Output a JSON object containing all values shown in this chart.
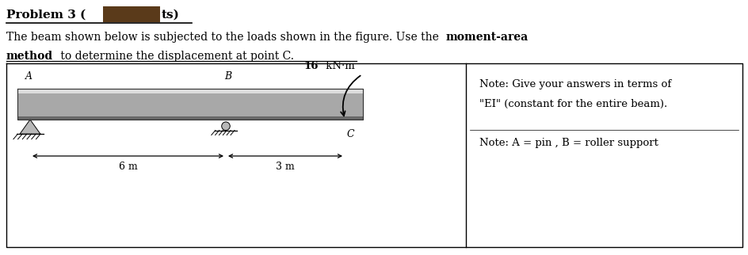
{
  "note1": "Note: Give your answers in terms of",
  "note2": "\"EI\" (constant for the entire beam).",
  "note3": "Note: A = pin , B = roller support",
  "moment_label_bold": "16",
  "moment_label_rest": " kN·m",
  "dim1": "6 m",
  "dim2": "3 m",
  "label_A": "A",
  "label_B": "B",
  "label_C": "C",
  "bg_color": "#ffffff",
  "redact_color": "#5a3a1a"
}
